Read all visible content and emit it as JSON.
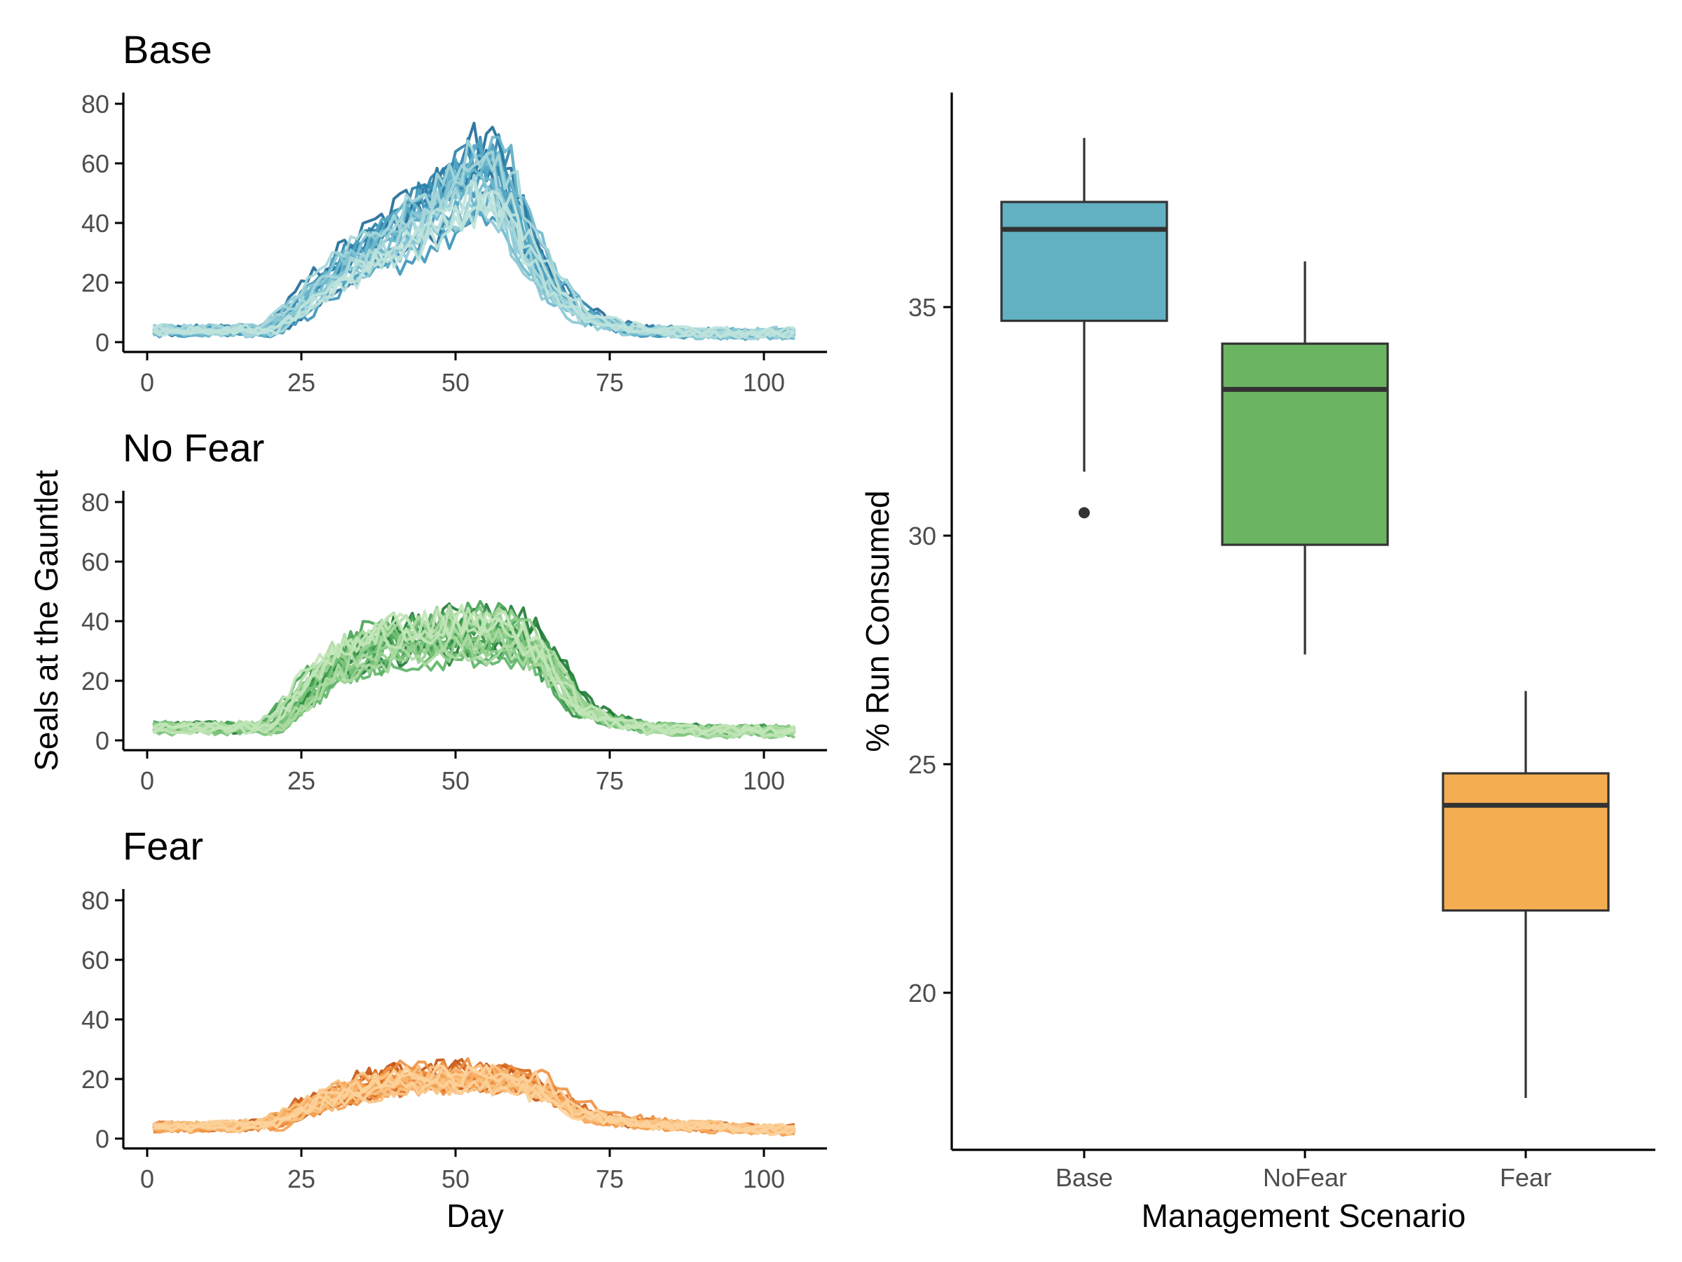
{
  "chart_data": [
    {
      "type": "line",
      "title": "Base",
      "xlabel": "",
      "ylabel": "Seals at the Gauntlet",
      "xlim": [
        0,
        105
      ],
      "ylim": [
        0,
        80
      ],
      "xticks": [
        0,
        25,
        50,
        75,
        100
      ],
      "yticks": [
        0,
        20,
        40,
        60,
        80
      ],
      "grid": false,
      "legend": "none",
      "series_count": 25,
      "palette": [
        "#1d6996",
        "#2a7fa8",
        "#3b93b8",
        "#52a6c4",
        "#6db8cd",
        "#8ac8d4",
        "#a7d7da",
        "#bfe3dc"
      ],
      "profile": {
        "day": [
          1,
          10,
          15,
          20,
          25,
          30,
          35,
          40,
          45,
          50,
          55,
          58,
          60,
          65,
          70,
          75,
          80,
          90,
          100,
          105
        ],
        "median": [
          4,
          4,
          4,
          4,
          12,
          21,
          28,
          34,
          41,
          48,
          55,
          50,
          39,
          20,
          10,
          6,
          4,
          3,
          3,
          3
        ]
      }
    },
    {
      "type": "line",
      "title": "No Fear",
      "xlabel": "",
      "ylabel": "Seals at the Gauntlet",
      "xlim": [
        0,
        105
      ],
      "ylim": [
        0,
        80
      ],
      "xticks": [
        0,
        25,
        50,
        75,
        100
      ],
      "yticks": [
        0,
        20,
        40,
        60,
        80
      ],
      "grid": false,
      "legend": "none",
      "series_count": 25,
      "palette": [
        "#1e7b34",
        "#2f8f43",
        "#45a353",
        "#5db466",
        "#79c37a",
        "#94d08e",
        "#addca3",
        "#c2e6b8"
      ],
      "profile": {
        "day": [
          1,
          10,
          15,
          20,
          25,
          30,
          35,
          40,
          45,
          50,
          55,
          60,
          65,
          70,
          75,
          80,
          90,
          100,
          105
        ],
        "median": [
          4,
          4,
          4,
          4,
          14,
          24,
          29,
          32,
          33,
          34,
          34,
          33,
          24,
          10,
          6,
          4,
          3,
          3,
          3
        ]
      }
    },
    {
      "type": "line",
      "title": "Fear",
      "xlabel": "Day",
      "ylabel": "Seals at the Gauntlet",
      "xlim": [
        0,
        105
      ],
      "ylim": [
        0,
        80
      ],
      "xticks": [
        0,
        25,
        50,
        75,
        100
      ],
      "yticks": [
        0,
        20,
        40,
        60,
        80
      ],
      "grid": false,
      "legend": "none",
      "series_count": 25,
      "palette": [
        "#c4540e",
        "#d8661a",
        "#e77b2a",
        "#f08f3e",
        "#f5a253",
        "#f8b46b",
        "#fac484",
        "#fcd39c"
      ],
      "profile": {
        "day": [
          1,
          10,
          15,
          20,
          25,
          30,
          35,
          40,
          45,
          50,
          55,
          60,
          65,
          70,
          75,
          80,
          90,
          100,
          105
        ],
        "median": [
          4,
          4,
          4,
          5,
          10,
          14,
          17,
          19,
          20,
          20,
          20,
          20,
          15,
          9,
          6,
          5,
          4,
          3,
          3
        ]
      }
    },
    {
      "type": "box",
      "title": "",
      "xlabel": "Management Scenario",
      "ylabel": "% Run Consumed",
      "categories": [
        "Base",
        "NoFear",
        "Fear"
      ],
      "ylim": [
        16.5,
        39.5
      ],
      "yticks": [
        20,
        25,
        30,
        35
      ],
      "grid": false,
      "legend": "none",
      "boxes": [
        {
          "name": "Base",
          "whisker_low": 31.4,
          "q1": 34.7,
          "median": 36.7,
          "q3": 37.3,
          "whisker_high": 38.7,
          "outliers": [
            30.5
          ],
          "color": "#62b1c2"
        },
        {
          "name": "NoFear",
          "whisker_low": 27.4,
          "q1": 29.8,
          "median": 33.2,
          "q3": 34.2,
          "whisker_high": 36.0,
          "outliers": [],
          "color": "#6bb562"
        },
        {
          "name": "Fear",
          "whisker_low": 17.7,
          "q1": 21.8,
          "median": 24.1,
          "q3": 24.8,
          "whisker_high": 26.6,
          "outliers": [],
          "color": "#f5ad52"
        }
      ]
    }
  ]
}
